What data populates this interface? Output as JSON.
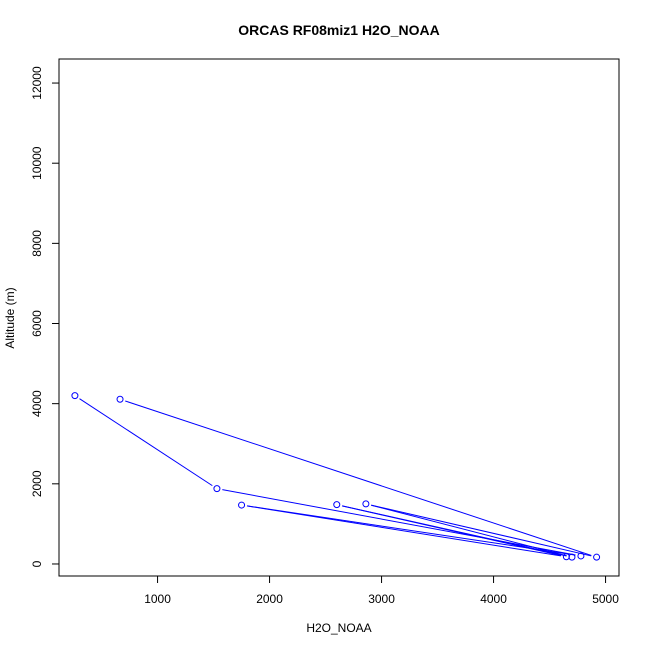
{
  "chart_data": {
    "type": "line",
    "title": "ORCAS RF08miz1 H2O_NOAA",
    "xlabel": "H2O_NOAA",
    "ylabel": "Altitude (m)",
    "xlim": [
      120,
      5120
    ],
    "ylim": [
      -300,
      12600
    ],
    "x_ticks": [
      1000,
      2000,
      3000,
      4000,
      5000
    ],
    "y_ticks": [
      0,
      2000,
      4000,
      6000,
      8000,
      10000,
      12000
    ],
    "x_tick_labels": [
      "1000",
      "2000",
      "3000",
      "4000",
      "5000"
    ],
    "y_tick_labels": [
      "0",
      "2000",
      "4000",
      "6000",
      "8000",
      "10000",
      "12000"
    ],
    "grid": false,
    "series": [
      {
        "color": "#0000ff",
        "marker": "open-circle",
        "points": [
          {
            "x": 262,
            "y": 4200
          },
          {
            "x": 1530,
            "y": 1880
          },
          {
            "x": 4780,
            "y": 200
          },
          {
            "x": 1750,
            "y": 1470
          },
          {
            "x": 4650,
            "y": 180
          },
          {
            "x": 2600,
            "y": 1480
          },
          {
            "x": 4700,
            "y": 170
          },
          {
            "x": 2860,
            "y": 1500
          },
          {
            "x": 4920,
            "y": 170
          },
          {
            "x": 665,
            "y": 4110
          }
        ]
      }
    ]
  }
}
